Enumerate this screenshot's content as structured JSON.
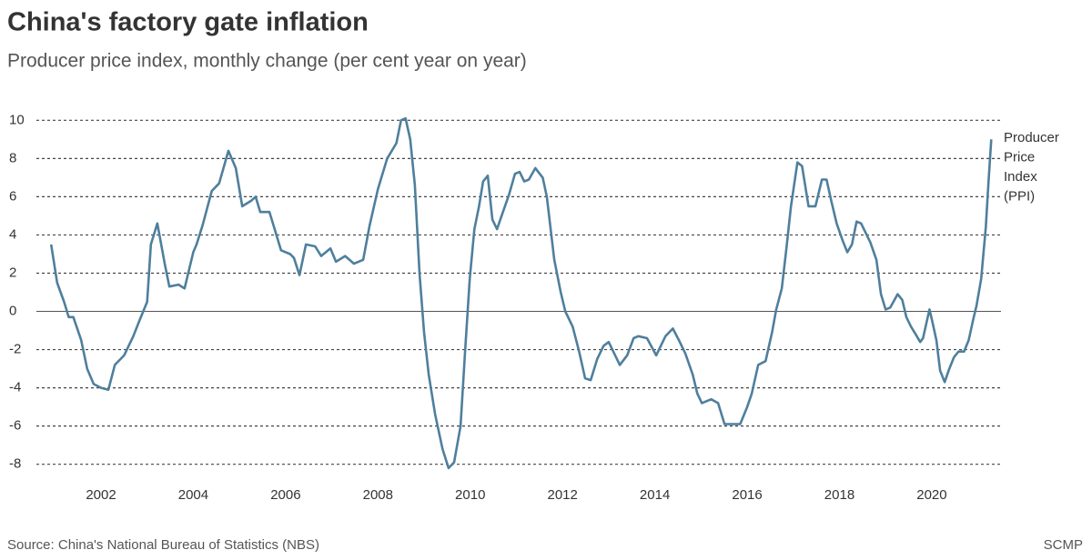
{
  "chart_data": {
    "type": "line",
    "title": "China's factory gate inflation",
    "subtitle": "Producer price index, monthly change (per cent year on year)",
    "source": "Source: China's National Bureau of Statistics (NBS)",
    "credit": "SCMP",
    "xlim": [
      2000.6,
      2021.5
    ],
    "xticks": [
      2002,
      2004,
      2006,
      2008,
      2010,
      2012,
      2014,
      2016,
      2018,
      2020
    ],
    "ylim": [
      -8.3,
      10.3
    ],
    "yticks": [
      -8,
      -6,
      -4,
      -2,
      0,
      2,
      4,
      6,
      8,
      10
    ],
    "grid": true,
    "series": [
      {
        "name": "Producer Price Index (PPI)",
        "color": "#4f7f9c",
        "x": [
          2000.92,
          2001.05,
          2001.2,
          2001.3,
          2001.4,
          2001.57,
          2001.7,
          2001.84,
          2002.0,
          2002.16,
          2002.3,
          2002.5,
          2002.7,
          2002.83,
          2003.0,
          2003.08,
          2003.22,
          2003.38,
          2003.48,
          2003.68,
          2003.81,
          2004.0,
          2004.07,
          2004.2,
          2004.4,
          2004.56,
          2004.76,
          2004.92,
          2005.06,
          2005.26,
          2005.35,
          2005.45,
          2005.65,
          2005.75,
          2005.9,
          2006.1,
          2006.18,
          2006.3,
          2006.44,
          2006.64,
          2006.77,
          2006.97,
          2007.09,
          2007.29,
          2007.48,
          2007.68,
          2007.82,
          2008.0,
          2008.2,
          2008.4,
          2008.5,
          2008.6,
          2008.7,
          2008.8,
          2008.9,
          2009.0,
          2009.1,
          2009.24,
          2009.4,
          2009.53,
          2009.65,
          2009.79,
          2009.89,
          2009.99,
          2010.09,
          2010.19,
          2010.28,
          2010.38,
          2010.48,
          2010.58,
          2010.68,
          2010.84,
          2010.97,
          2011.07,
          2011.17,
          2011.27,
          2011.41,
          2011.57,
          2011.66,
          2011.82,
          2011.96,
          2012.06,
          2012.22,
          2012.36,
          2012.49,
          2012.61,
          2012.75,
          2012.89,
          2013.0,
          2013.14,
          2013.24,
          2013.4,
          2013.54,
          2013.64,
          2013.83,
          2014.03,
          2014.23,
          2014.39,
          2014.52,
          2014.66,
          2014.82,
          2014.92,
          2015.02,
          2015.22,
          2015.37,
          2015.51,
          2015.71,
          2015.85,
          2016.0,
          2016.1,
          2016.24,
          2016.4,
          2016.54,
          2016.63,
          2016.75,
          2016.85,
          2016.95,
          2017.09,
          2017.19,
          2017.33,
          2017.48,
          2017.62,
          2017.72,
          2017.82,
          2017.94,
          2018.07,
          2018.17,
          2018.27,
          2018.37,
          2018.47,
          2018.57,
          2018.67,
          2018.8,
          2018.9,
          2019.0,
          2019.1,
          2019.26,
          2019.36,
          2019.45,
          2019.55,
          2019.65,
          2019.75,
          2019.81,
          2019.95,
          2020.0,
          2020.1,
          2020.18,
          2020.28,
          2020.38,
          2020.48,
          2020.58,
          2020.7,
          2020.8,
          2020.9,
          2020.97,
          2021.07,
          2021.17,
          2021.23,
          2021.29
        ],
        "values": [
          3.5,
          1.5,
          0.5,
          -0.3,
          -0.3,
          -1.5,
          -3,
          -3.8,
          -4.0,
          -4.1,
          -2.8,
          -2.3,
          -1.3,
          -0.5,
          0.5,
          3.5,
          4.6,
          2.5,
          1.3,
          1.4,
          1.2,
          3.1,
          3.5,
          4.5,
          6.3,
          6.7,
          8.4,
          7.5,
          5.5,
          5.8,
          6.0,
          5.2,
          5.2,
          4.4,
          3.2,
          3.0,
          2.8,
          1.9,
          3.5,
          3.4,
          2.9,
          3.3,
          2.6,
          2.9,
          2.5,
          2.7,
          4.5,
          6.4,
          8.0,
          8.8,
          10.0,
          10.1,
          9.0,
          6.6,
          2.0,
          -1.1,
          -3.3,
          -5.4,
          -7.2,
          -8.2,
          -7.9,
          -6.0,
          -2.0,
          1.7,
          4.3,
          5.5,
          6.8,
          7.1,
          4.8,
          4.3,
          5.0,
          6.1,
          7.2,
          7.3,
          6.8,
          6.9,
          7.5,
          7.0,
          6.0,
          2.7,
          1.0,
          0.0,
          -0.8,
          -2.1,
          -3.5,
          -3.6,
          -2.5,
          -1.8,
          -1.6,
          -2.3,
          -2.8,
          -2.3,
          -1.4,
          -1.3,
          -1.4,
          -2.3,
          -1.3,
          -0.9,
          -1.5,
          -2.2,
          -3.3,
          -4.3,
          -4.8,
          -4.6,
          -4.8,
          -5.9,
          -5.9,
          -5.9,
          -5.0,
          -4.3,
          -2.8,
          -2.6,
          -1.1,
          0.1,
          1.2,
          3.3,
          5.5,
          7.8,
          7.6,
          5.5,
          5.5,
          6.9,
          6.9,
          5.8,
          4.6,
          3.7,
          3.1,
          3.5,
          4.7,
          4.6,
          4.1,
          3.6,
          2.7,
          0.9,
          0.1,
          0.2,
          0.9,
          0.6,
          -0.3,
          -0.8,
          -1.2,
          -1.6,
          -1.4,
          0.1,
          -0.4,
          -1.5,
          -3.1,
          -3.7,
          -3.0,
          -2.4,
          -2.1,
          -2.1,
          -1.5,
          -0.4,
          0.3,
          1.7,
          4.4,
          6.8,
          9.0
        ]
      }
    ]
  }
}
